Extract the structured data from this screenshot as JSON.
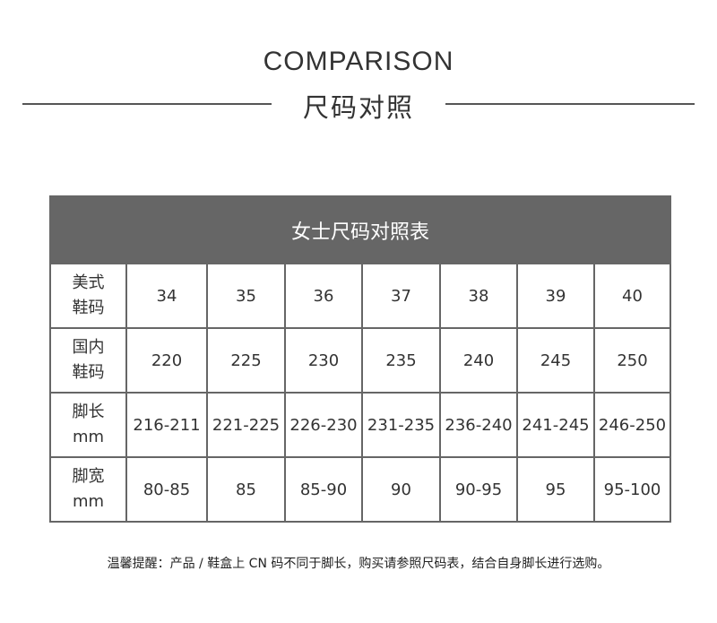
{
  "header": {
    "title_en": "COMPARISON",
    "title_cn": "尺码对照"
  },
  "table": {
    "title": "女士尺码对照表",
    "rows": [
      {
        "label": [
          "美式",
          "鞋码"
        ],
        "values": [
          "34",
          "35",
          "36",
          "37",
          "38",
          "39",
          "40"
        ]
      },
      {
        "label": [
          "国内",
          "鞋码"
        ],
        "values": [
          "220",
          "225",
          "230",
          "235",
          "240",
          "245",
          "250"
        ]
      },
      {
        "label": [
          "脚长",
          "mm"
        ],
        "values": [
          "216-211",
          "221-225",
          "226-230",
          "231-235",
          "236-240",
          "241-245",
          "246-250"
        ]
      },
      {
        "label": [
          "脚宽",
          "mm"
        ],
        "values": [
          "80-85",
          "85",
          "85-90",
          "90",
          "90-95",
          "95",
          "95-100"
        ]
      }
    ]
  },
  "note": "温馨提醒：产品 / 鞋盒上 CN 码不同于脚长，购买请参照尺码表，结合自身脚长进行选购。",
  "colors": {
    "header_bg": "#666666",
    "border": "#666666"
  }
}
